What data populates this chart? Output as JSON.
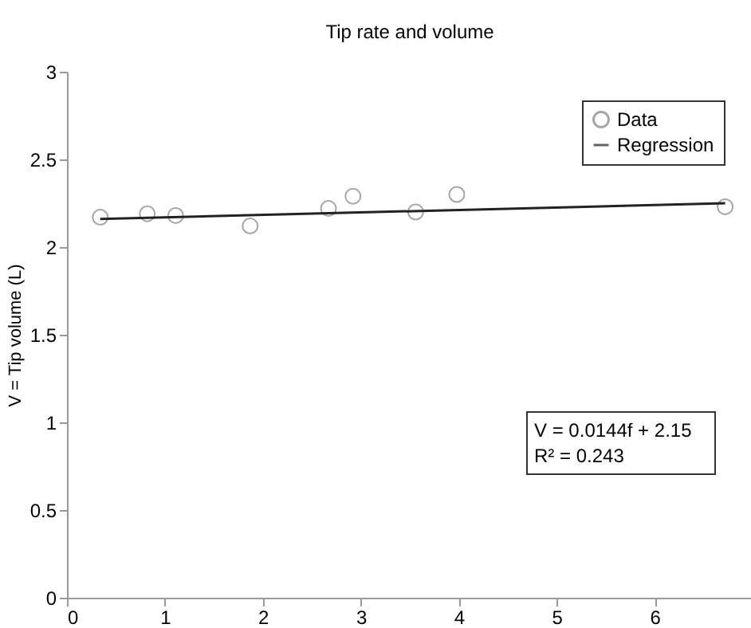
{
  "chart_data": {
    "type": "scatter",
    "title": "Tip rate and volume",
    "ylabel": "V = Tip volume (L)",
    "xlim": [
      0,
      7
    ],
    "xticks": [
      0,
      1,
      2,
      3,
      4,
      5,
      6
    ],
    "ylim": [
      0,
      3
    ],
    "yticks": [
      0,
      0.5,
      1,
      1.5,
      2,
      2.5,
      3
    ],
    "grid": false,
    "legend": "top right",
    "annotations": [
      "V = 0.0144f + 2.15",
      "R² = 0.243"
    ],
    "series": [
      {
        "name": "Data",
        "marker": "circle",
        "color": "#808080",
        "x": [
          0.34,
          0.82,
          1.11,
          1.87,
          2.67,
          2.92,
          3.56,
          3.98,
          6.72
        ],
        "values": [
          2.17,
          2.19,
          2.18,
          2.12,
          2.22,
          2.29,
          2.2,
          2.3,
          2.23
        ]
      },
      {
        "name": "Regression",
        "type": "line",
        "line_style": "solid",
        "color": "#222222",
        "x": [
          0.34,
          6.72
        ],
        "values": [
          2.16,
          2.25
        ]
      }
    ]
  }
}
